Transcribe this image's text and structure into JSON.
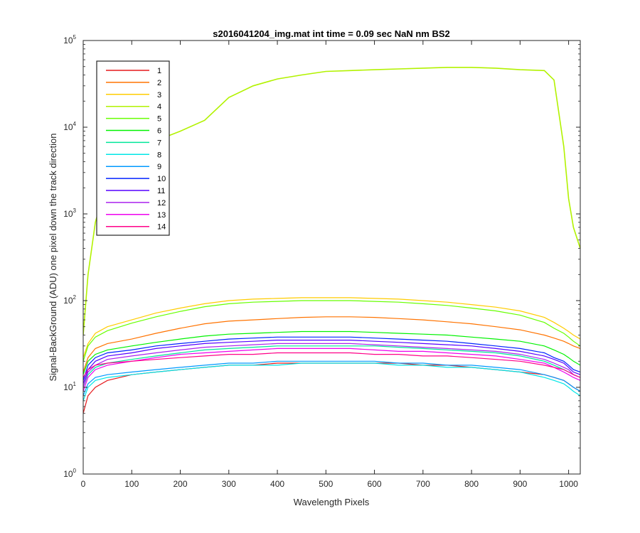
{
  "chart_data": {
    "type": "line",
    "title": "s2016041204_img.mat int time = 0.09 sec  NaN nm BS2",
    "xlabel": "Wavelength Pixels",
    "ylabel": "Signal-BackGround (ADU) one pixel down the track direction",
    "xlim": [
      0,
      1024
    ],
    "ylim": [
      1,
      100000
    ],
    "yscale": "log",
    "xticks": [
      0,
      100,
      200,
      300,
      400,
      500,
      600,
      700,
      800,
      900,
      1000
    ],
    "xtick_labels": [
      "0",
      "100",
      "200",
      "300",
      "400",
      "500",
      "600",
      "700",
      "800",
      "900",
      "1000"
    ],
    "yticks": [
      1,
      10,
      100,
      1000,
      10000,
      100000
    ],
    "ytick_labels": [
      {
        "base": "10",
        "exp": "0"
      },
      {
        "base": "10",
        "exp": "1"
      },
      {
        "base": "10",
        "exp": "2"
      },
      {
        "base": "10",
        "exp": "3"
      },
      {
        "base": "10",
        "exp": "4"
      },
      {
        "base": "10",
        "exp": "5"
      }
    ],
    "grid": false,
    "legend_position": "top-left",
    "x": [
      0,
      10,
      25,
      50,
      100,
      150,
      200,
      250,
      300,
      350,
      400,
      450,
      500,
      550,
      600,
      650,
      700,
      750,
      800,
      850,
      900,
      950,
      970,
      990,
      1000,
      1010,
      1024
    ],
    "series": [
      {
        "name": "1",
        "color": "#e6191c",
        "values": [
          5,
          8,
          10,
          12,
          14,
          15,
          16,
          17,
          18,
          18,
          19,
          19,
          19,
          19,
          19,
          19,
          18,
          18,
          17,
          16,
          15,
          14,
          13,
          12,
          11,
          10,
          9
        ]
      },
      {
        "name": "2",
        "color": "#ff7300",
        "values": [
          15,
          22,
          28,
          32,
          36,
          42,
          48,
          54,
          58,
          60,
          62,
          64,
          65,
          65,
          64,
          62,
          60,
          57,
          54,
          50,
          46,
          40,
          37,
          34,
          32,
          30,
          28
        ]
      },
      {
        "name": "3",
        "color": "#ffcc00",
        "values": [
          22,
          32,
          42,
          50,
          60,
          72,
          82,
          92,
          100,
          104,
          106,
          108,
          108,
          108,
          106,
          104,
          100,
          96,
          90,
          84,
          76,
          64,
          56,
          48,
          44,
          40,
          36
        ]
      },
      {
        "name": "4",
        "color": "#b2f200",
        "values": [
          40,
          200,
          800,
          2500,
          5500,
          7000,
          9000,
          12000,
          22000,
          30000,
          36000,
          40000,
          44000,
          45000,
          46000,
          47000,
          48000,
          49000,
          49000,
          48000,
          46000,
          45000,
          35000,
          6000,
          1500,
          700,
          400
        ]
      },
      {
        "name": "5",
        "color": "#66ff00",
        "values": [
          20,
          30,
          38,
          45,
          55,
          65,
          75,
          85,
          92,
          96,
          98,
          100,
          100,
          100,
          98,
          96,
          92,
          88,
          82,
          76,
          68,
          56,
          48,
          42,
          38,
          34,
          30
        ]
      },
      {
        "name": "6",
        "color": "#00f200",
        "values": [
          14,
          20,
          24,
          27,
          30,
          33,
          36,
          39,
          41,
          42,
          43,
          44,
          44,
          44,
          43,
          42,
          41,
          40,
          38,
          36,
          34,
          30,
          27,
          24,
          22,
          20,
          18
        ]
      },
      {
        "name": "7",
        "color": "#00e699",
        "values": [
          10,
          14,
          17,
          19,
          21,
          23,
          25,
          27,
          28,
          29,
          30,
          30,
          30,
          30,
          30,
          29,
          28,
          27,
          26,
          25,
          23,
          20,
          18,
          16,
          15,
          14,
          13
        ]
      },
      {
        "name": "8",
        "color": "#00e6e6",
        "values": [
          7,
          10,
          12,
          13,
          14,
          15,
          16,
          17,
          18,
          18,
          18,
          19,
          19,
          19,
          19,
          18,
          18,
          17,
          17,
          16,
          15,
          13,
          12,
          11,
          10,
          9,
          8
        ]
      },
      {
        "name": "9",
        "color": "#0099ff",
        "values": [
          8,
          11,
          13,
          14,
          15,
          16,
          17,
          18,
          19,
          19,
          20,
          20,
          20,
          20,
          20,
          19,
          19,
          18,
          18,
          17,
          16,
          14,
          13,
          12,
          11,
          10,
          9
        ]
      },
      {
        "name": "10",
        "color": "#0022ff",
        "values": [
          12,
          18,
          22,
          25,
          27,
          30,
          32,
          34,
          36,
          37,
          38,
          38,
          38,
          38,
          37,
          36,
          35,
          34,
          32,
          30,
          28,
          25,
          22,
          20,
          18,
          16,
          15
        ]
      },
      {
        "name": "11",
        "color": "#5500ff",
        "values": [
          11,
          16,
          20,
          23,
          25,
          28,
          30,
          32,
          33,
          34,
          35,
          35,
          35,
          35,
          34,
          33,
          32,
          31,
          30,
          28,
          26,
          23,
          21,
          19,
          17,
          15,
          14
        ]
      },
      {
        "name": "12",
        "color": "#aa22ee",
        "values": [
          10,
          15,
          18,
          21,
          23,
          25,
          27,
          29,
          30,
          31,
          32,
          32,
          32,
          32,
          31,
          30,
          29,
          28,
          27,
          26,
          24,
          21,
          19,
          17,
          16,
          14,
          13
        ]
      },
      {
        "name": "13",
        "color": "#ee00ee",
        "values": [
          9,
          13,
          16,
          18,
          20,
          22,
          24,
          25,
          26,
          27,
          28,
          28,
          28,
          28,
          27,
          26,
          26,
          25,
          24,
          23,
          21,
          19,
          17,
          15,
          14,
          13,
          12
        ]
      },
      {
        "name": "14",
        "color": "#ff0088",
        "values": [
          13,
          16,
          18,
          19,
          20,
          21,
          22,
          23,
          24,
          24,
          25,
          25,
          25,
          25,
          24,
          24,
          23,
          23,
          22,
          21,
          20,
          18,
          17,
          16,
          15,
          14,
          13
        ]
      }
    ]
  }
}
